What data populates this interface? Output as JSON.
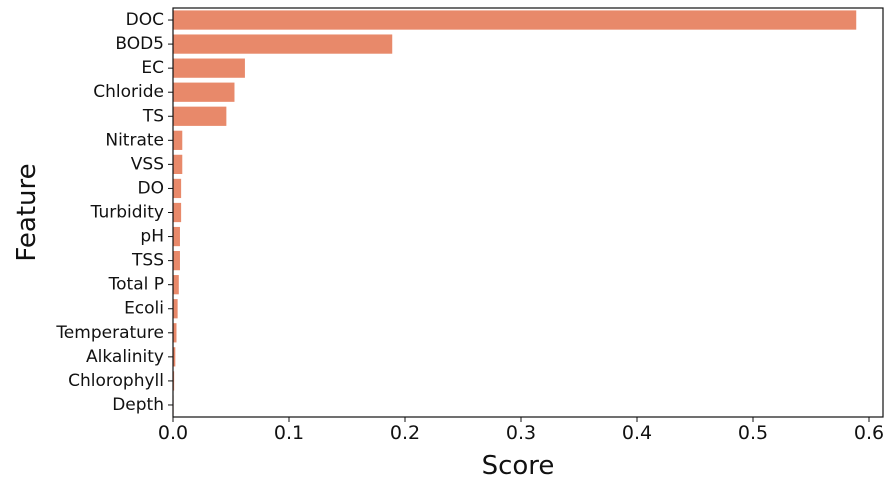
{
  "chart_data": {
    "type": "bar",
    "orientation": "horizontal",
    "xlabel": "Score",
    "ylabel": "Feature",
    "xlim": [
      0,
      0.61
    ],
    "xticks": [
      0.0,
      0.1,
      0.2,
      0.3,
      0.4,
      0.5,
      0.6
    ],
    "xtick_labels": [
      "0.0",
      "0.1",
      "0.2",
      "0.3",
      "0.4",
      "0.5",
      "0.6"
    ],
    "grid": false,
    "bar_color": "#E8896A",
    "categories": [
      "DOC",
      "BOD5",
      "EC",
      "Chloride",
      "TS",
      "Nitrate",
      "VSS",
      "DO",
      "Turbidity",
      "pH",
      "TSS",
      "Total P",
      "Ecoli",
      "Temperature",
      "Alkalinity",
      "Chlorophyll",
      "Depth"
    ],
    "values": [
      0.589,
      0.189,
      0.062,
      0.053,
      0.046,
      0.008,
      0.008,
      0.007,
      0.007,
      0.006,
      0.006,
      0.005,
      0.004,
      0.003,
      0.002,
      0.001,
      0.0005
    ]
  }
}
